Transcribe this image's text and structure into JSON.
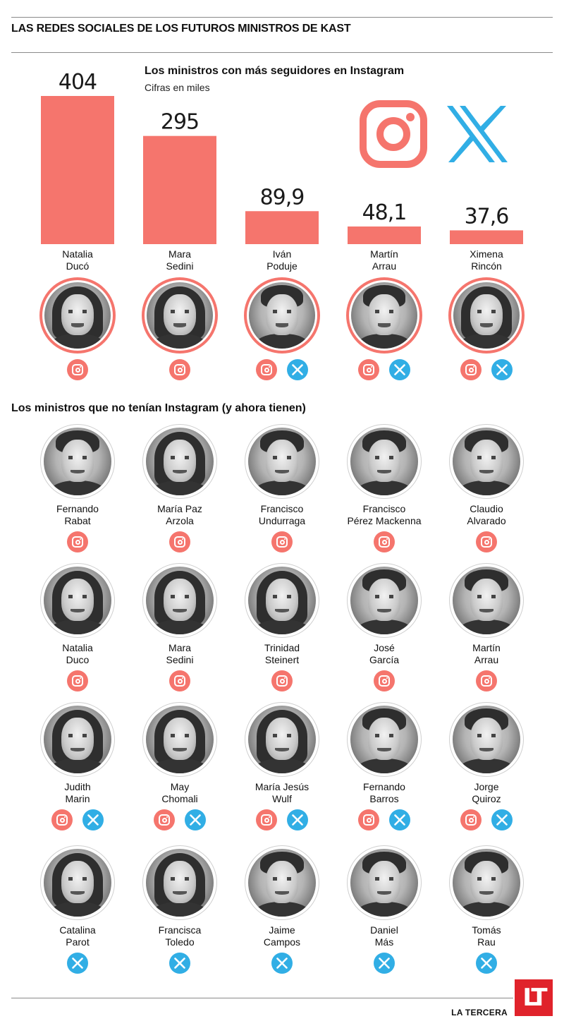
{
  "title": "LAS REDES SOCIALES DE LOS FUTUROS MINISTROS DE KAST",
  "chart_data": {
    "type": "bar",
    "title": "Los ministros con más seguidores en Instagram",
    "subtitle": "Cifras en miles",
    "categories": [
      "Natalia Ducó",
      "Mara Sedini",
      "Iván Poduje",
      "Martín Arrau",
      "Ximena Rincón"
    ],
    "values": [
      404,
      295,
      89.9,
      48.1,
      37.6
    ],
    "value_labels": [
      "404",
      "295",
      "89,9",
      "48,1",
      "37,6"
    ],
    "color": "#f5756d",
    "ylim": [
      0,
      404
    ]
  },
  "top_ministers": [
    {
      "line1": "Natalia",
      "line2": "Ducó",
      "networks": [
        "instagram"
      ]
    },
    {
      "line1": "Mara",
      "line2": "Sedini",
      "networks": [
        "instagram"
      ]
    },
    {
      "line1": "Iván",
      "line2": "Poduje",
      "networks": [
        "instagram",
        "x"
      ]
    },
    {
      "line1": "Martín",
      "line2": "Arrau",
      "networks": [
        "instagram",
        "x"
      ]
    },
    {
      "line1": "Ximena",
      "line2": "Rincón",
      "networks": [
        "instagram",
        "x"
      ]
    }
  ],
  "section2_title": "Los ministros que no tenían Instagram (y ahora tienen)",
  "grid_ministers": [
    {
      "line1": "Fernando",
      "line2": "Rabat",
      "networks": [
        "instagram"
      ],
      "hair": "short"
    },
    {
      "line1": "María Paz",
      "line2": "Arzola",
      "networks": [
        "instagram"
      ],
      "hair": "long"
    },
    {
      "line1": "Francisco",
      "line2": "Undurraga",
      "networks": [
        "instagram"
      ],
      "hair": "short"
    },
    {
      "line1": "Francisco",
      "line2": "Pérez Mackenna",
      "networks": [
        "instagram"
      ],
      "hair": "short"
    },
    {
      "line1": "Claudio",
      "line2": "Alvarado",
      "networks": [
        "instagram"
      ],
      "hair": "short"
    },
    {
      "line1": "Natalia",
      "line2": "Duco",
      "networks": [
        "instagram"
      ],
      "hair": "long"
    },
    {
      "line1": "Mara",
      "line2": "Sedini",
      "networks": [
        "instagram"
      ],
      "hair": "long"
    },
    {
      "line1": "Trinidad",
      "line2": "Steinert",
      "networks": [
        "instagram"
      ],
      "hair": "long"
    },
    {
      "line1": "José",
      "line2": "García",
      "networks": [
        "instagram"
      ],
      "hair": "short"
    },
    {
      "line1": "Martín",
      "line2": "Arrau",
      "networks": [
        "instagram"
      ],
      "hair": "short"
    },
    {
      "line1": "Judith",
      "line2": "Marin",
      "networks": [
        "instagram",
        "x"
      ],
      "hair": "long"
    },
    {
      "line1": "May",
      "line2": "Chomali",
      "networks": [
        "instagram",
        "x"
      ],
      "hair": "long"
    },
    {
      "line1": "María Jesús",
      "line2": "Wulf",
      "networks": [
        "instagram",
        "x"
      ],
      "hair": "long"
    },
    {
      "line1": "Fernando",
      "line2": "Barros",
      "networks": [
        "instagram",
        "x"
      ],
      "hair": "short"
    },
    {
      "line1": "Jorge",
      "line2": "Quiroz",
      "networks": [
        "instagram",
        "x"
      ],
      "hair": "short"
    },
    {
      "line1": "Catalina",
      "line2": "Parot",
      "networks": [
        "x"
      ],
      "hair": "long"
    },
    {
      "line1": "Francisca",
      "line2": "Toledo",
      "networks": [
        "x"
      ],
      "hair": "long"
    },
    {
      "line1": "Jaime",
      "line2": "Campos",
      "networks": [
        "x"
      ],
      "hair": "short"
    },
    {
      "line1": "Daniel",
      "line2": "Más",
      "networks": [
        "x"
      ],
      "hair": "short"
    },
    {
      "line1": "Tomás",
      "line2": "Rau",
      "networks": [
        "x"
      ],
      "hair": "short"
    }
  ],
  "colors": {
    "instagram": "#f5756d",
    "x": "#31aee5",
    "brand": "#e0232b"
  },
  "brand": {
    "name": "LA TERCERA",
    "logo_text": "LT"
  }
}
